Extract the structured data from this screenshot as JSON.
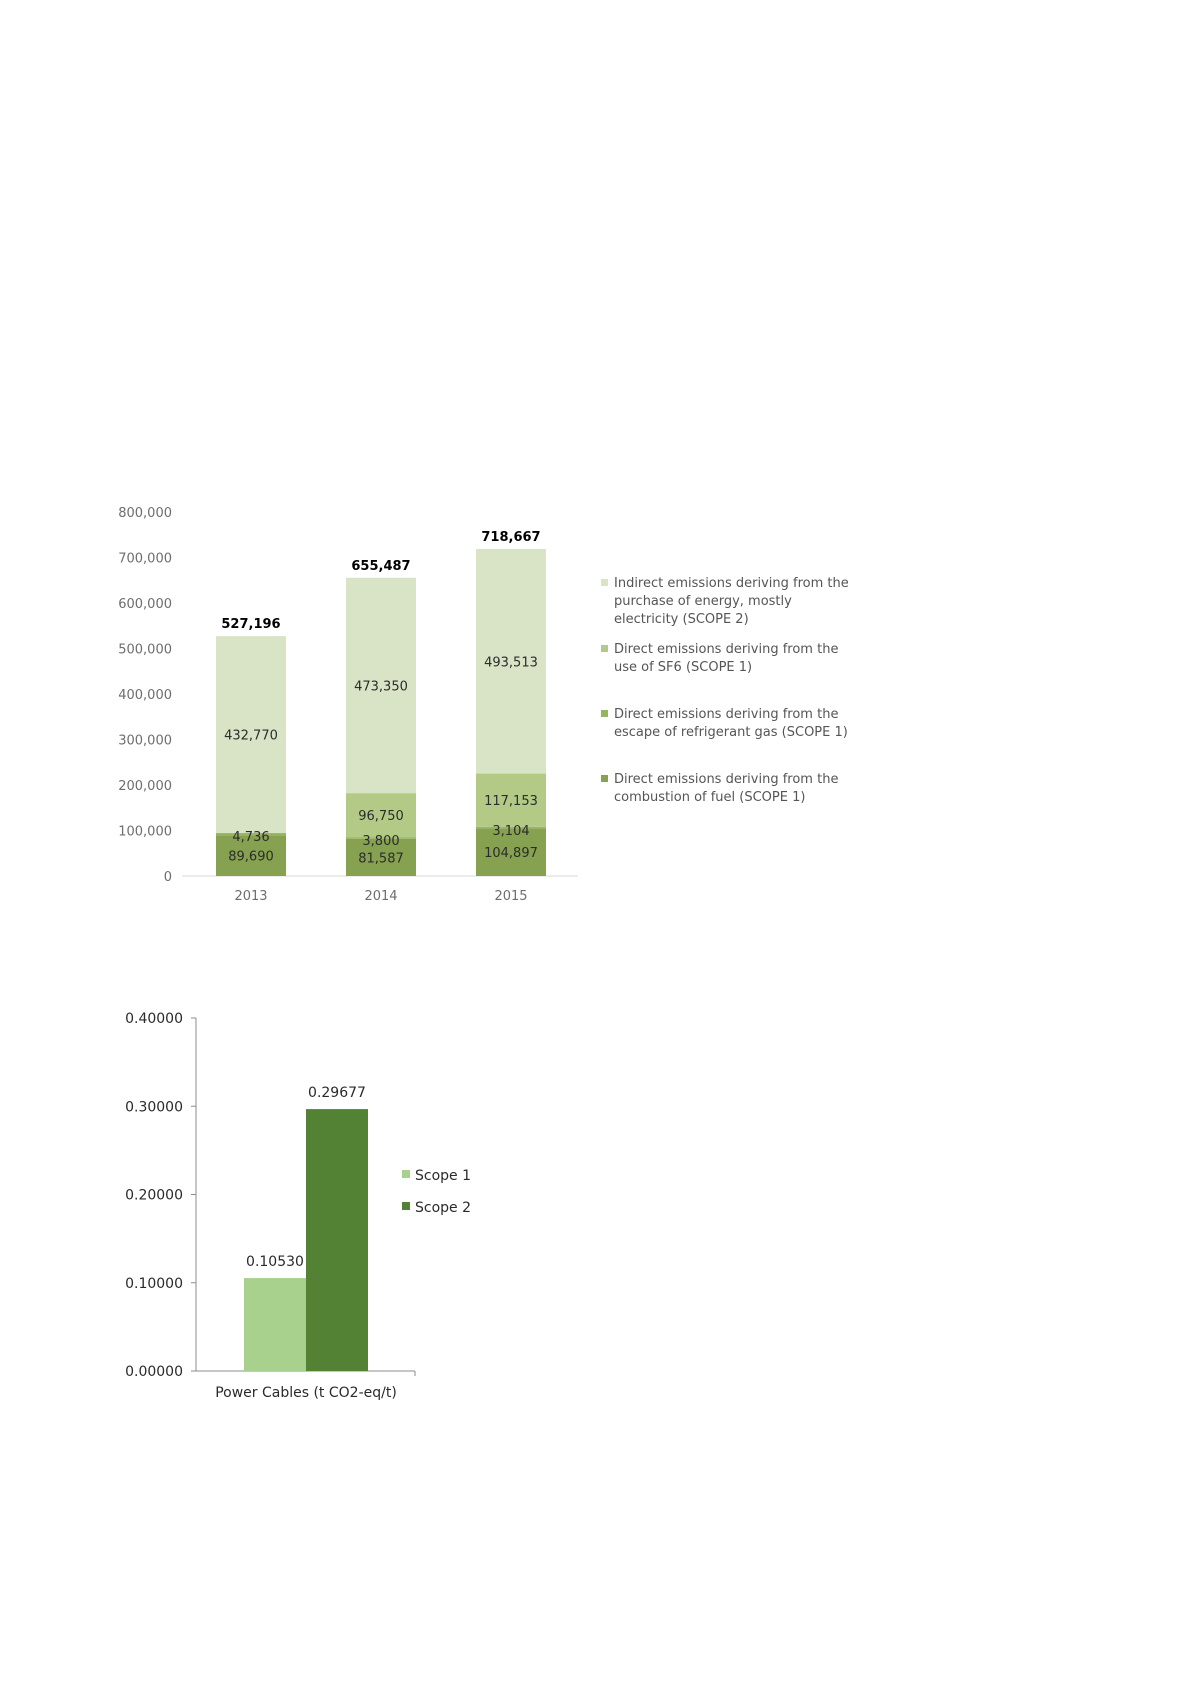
{
  "chart_data": [
    {
      "type": "bar",
      "stacked": true,
      "categories": [
        "2013",
        "2014",
        "2015"
      ],
      "series": [
        {
          "name": "Direct emissions deriving from the combustion of fuel (SCOPE 1)",
          "values": [
            89690,
            81587,
            104897
          ],
          "labels": [
            "89,690",
            "81,587",
            "104,897"
          ],
          "color": "#86a14f"
        },
        {
          "name": "Direct emissions deriving from the escape of refrigerant gas (SCOPE 1)",
          "values": [
            4736,
            3800,
            3104
          ],
          "labels": [
            "4,736",
            "3,800",
            "3,104"
          ],
          "color": "#97b460"
        },
        {
          "name": "Direct emissions deriving from the use of SF6 (SCOPE 1)",
          "values": [
            0,
            96750,
            117153
          ],
          "labels": [
            "",
            "96,750",
            "117,153"
          ],
          "color": "#b2ca85"
        },
        {
          "name": "Indirect emissions deriving from the purchase of energy, mostly electricity (SCOPE 2)",
          "values": [
            432770,
            473350,
            493513
          ],
          "labels": [
            "432,770",
            "473,350",
            "493,513"
          ],
          "color": "#d9e3c6"
        }
      ],
      "totals": [
        "527,196",
        "655,487",
        "718,667"
      ],
      "total_values": [
        527196,
        655487,
        718667
      ],
      "ylim": [
        0,
        800000
      ],
      "yticks": [
        "0",
        "100,000",
        "200,000",
        "300,000",
        "400,000",
        "500,000",
        "600,000",
        "700,000",
        "800,000"
      ],
      "legend": {
        "placement": "right",
        "entries": [
          [
            "Indirect emissions deriving from the",
            "purchase of energy, mostly",
            "electricity (SCOPE 2)"
          ],
          [
            "Direct emissions deriving from the",
            "use of SF6 (SCOPE 1)"
          ],
          [
            "Direct emissions deriving from the",
            "escape of refrigerant gas (SCOPE 1)"
          ],
          [
            "Direct emissions deriving from the",
            "combustion of fuel (SCOPE 1)"
          ]
        ],
        "colors": [
          "#d9e3c6",
          "#b2ca85",
          "#97b460",
          "#86a14f"
        ]
      },
      "grid": false
    },
    {
      "type": "bar",
      "categories": [
        "Power Cables (t CO2-eq/t)"
      ],
      "series": [
        {
          "name": "Scope 1",
          "values": [
            0.1053
          ],
          "label": "0.10530",
          "color": "#a9d18e"
        },
        {
          "name": "Scope 2",
          "values": [
            0.29677
          ],
          "label": "0.29677",
          "color": "#548235"
        }
      ],
      "ylim": [
        0,
        0.4
      ],
      "yticks": [
        "0.00000",
        "0.10000",
        "0.20000",
        "0.30000",
        "0.40000"
      ],
      "legend": {
        "placement": "right"
      },
      "grid": false
    }
  ]
}
